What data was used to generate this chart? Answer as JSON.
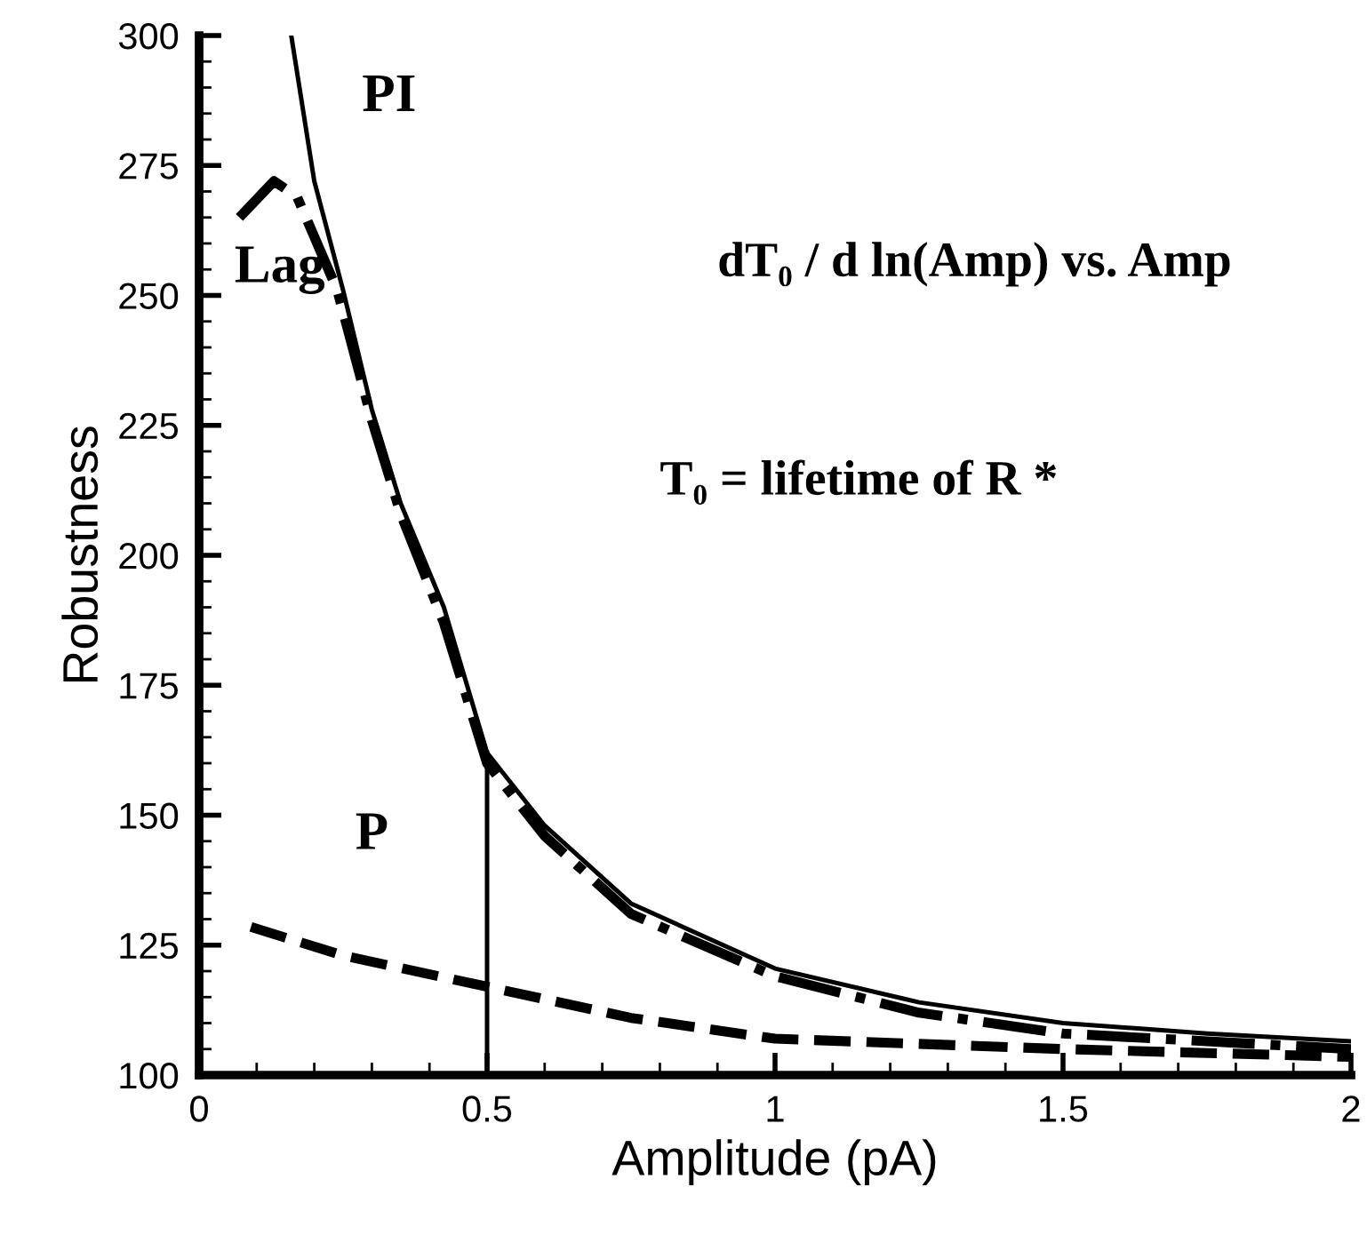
{
  "chart_data": {
    "type": "line",
    "xlabel": "Amplitude (pA)",
    "ylabel": "Robustness",
    "xlim": [
      0,
      2
    ],
    "ylim": [
      100,
      300
    ],
    "xticks": [
      0,
      {
        "value": 0.1,
        "label": null
      },
      {
        "value": 0.2,
        "label": null
      },
      {
        "value": 0.3,
        "label": null
      },
      {
        "value": 0.4,
        "label": null
      },
      0.5,
      {
        "value": 0.6,
        "label": null
      },
      {
        "value": 0.7,
        "label": null
      },
      {
        "value": 0.8,
        "label": null
      },
      {
        "value": 0.9,
        "label": null
      },
      1,
      {
        "value": 1.1,
        "label": null
      },
      {
        "value": 1.2,
        "label": null
      },
      {
        "value": 1.3,
        "label": null
      },
      {
        "value": 1.4,
        "label": null
      },
      1.5,
      {
        "value": 1.6,
        "label": null
      },
      {
        "value": 1.7,
        "label": null
      },
      {
        "value": 1.8,
        "label": null
      },
      {
        "value": 1.9,
        "label": null
      },
      2
    ],
    "yticks": [
      100,
      {
        "value": 105,
        "label": null
      },
      {
        "value": 110,
        "label": null
      },
      {
        "value": 115,
        "label": null
      },
      {
        "value": 120,
        "label": null
      },
      125,
      {
        "value": 130,
        "label": null
      },
      {
        "value": 135,
        "label": null
      },
      {
        "value": 140,
        "label": null
      },
      {
        "value": 145,
        "label": null
      },
      150,
      {
        "value": 155,
        "label": null
      },
      {
        "value": 160,
        "label": null
      },
      {
        "value": 165,
        "label": null
      },
      {
        "value": 170,
        "label": null
      },
      175,
      {
        "value": 180,
        "label": null
      },
      {
        "value": 185,
        "label": null
      },
      {
        "value": 190,
        "label": null
      },
      {
        "value": 195,
        "label": null
      },
      200,
      {
        "value": 205,
        "label": null
      },
      {
        "value": 210,
        "label": null
      },
      {
        "value": 215,
        "label": null
      },
      {
        "value": 220,
        "label": null
      },
      225,
      {
        "value": 230,
        "label": null
      },
      {
        "value": 235,
        "label": null
      },
      {
        "value": 240,
        "label": null
      },
      {
        "value": 245,
        "label": null
      },
      250,
      {
        "value": 255,
        "label": null
      },
      {
        "value": 260,
        "label": null
      },
      {
        "value": 265,
        "label": null
      },
      {
        "value": 270,
        "label": null
      },
      275,
      {
        "value": 280,
        "label": null
      },
      {
        "value": 285,
        "label": null
      },
      {
        "value": 290,
        "label": null
      },
      {
        "value": 295,
        "label": null
      },
      300
    ],
    "grid": false,
    "legend": false,
    "series": [
      {
        "name": "PI",
        "color": "#000000",
        "line_style": "solid",
        "x": [
          0.16,
          0.2,
          0.25,
          0.3,
          0.35,
          0.425,
          0.5,
          0.6,
          0.75,
          1,
          1.25,
          1.5,
          1.75,
          2
        ],
        "values": [
          300,
          272,
          251,
          228,
          210,
          190,
          162,
          148,
          133,
          120.5,
          114,
          110,
          108,
          106.5
        ]
      },
      {
        "name": "Lag",
        "color": "#000000",
        "line_style": "dashdot",
        "x": [
          0.07,
          0.13,
          0.17,
          0.24,
          0.3,
          0.35,
          0.425,
          0.5,
          0.6,
          0.75,
          1,
          1.25,
          1.5,
          1.75,
          2
        ],
        "values": [
          265,
          272,
          269,
          251,
          226,
          208,
          187,
          160,
          146,
          131,
          119,
          112,
          108,
          106.5,
          105
        ]
      },
      {
        "name": "P",
        "color": "#000000",
        "line_style": "dashed",
        "x": [
          0.09,
          0.25,
          0.5,
          0.75,
          1,
          1.5,
          2
        ],
        "values": [
          128.5,
          123,
          117,
          111,
          107,
          105,
          103.5
        ]
      }
    ],
    "ref_lines": [
      {
        "axis": "x",
        "value": 0.5,
        "color": "#000000",
        "line_style": "solid"
      }
    ],
    "annotations": [
      "dT₀ / d ln(Amp) vs. Amp",
      "T₀ = lifetime of R *"
    ]
  }
}
